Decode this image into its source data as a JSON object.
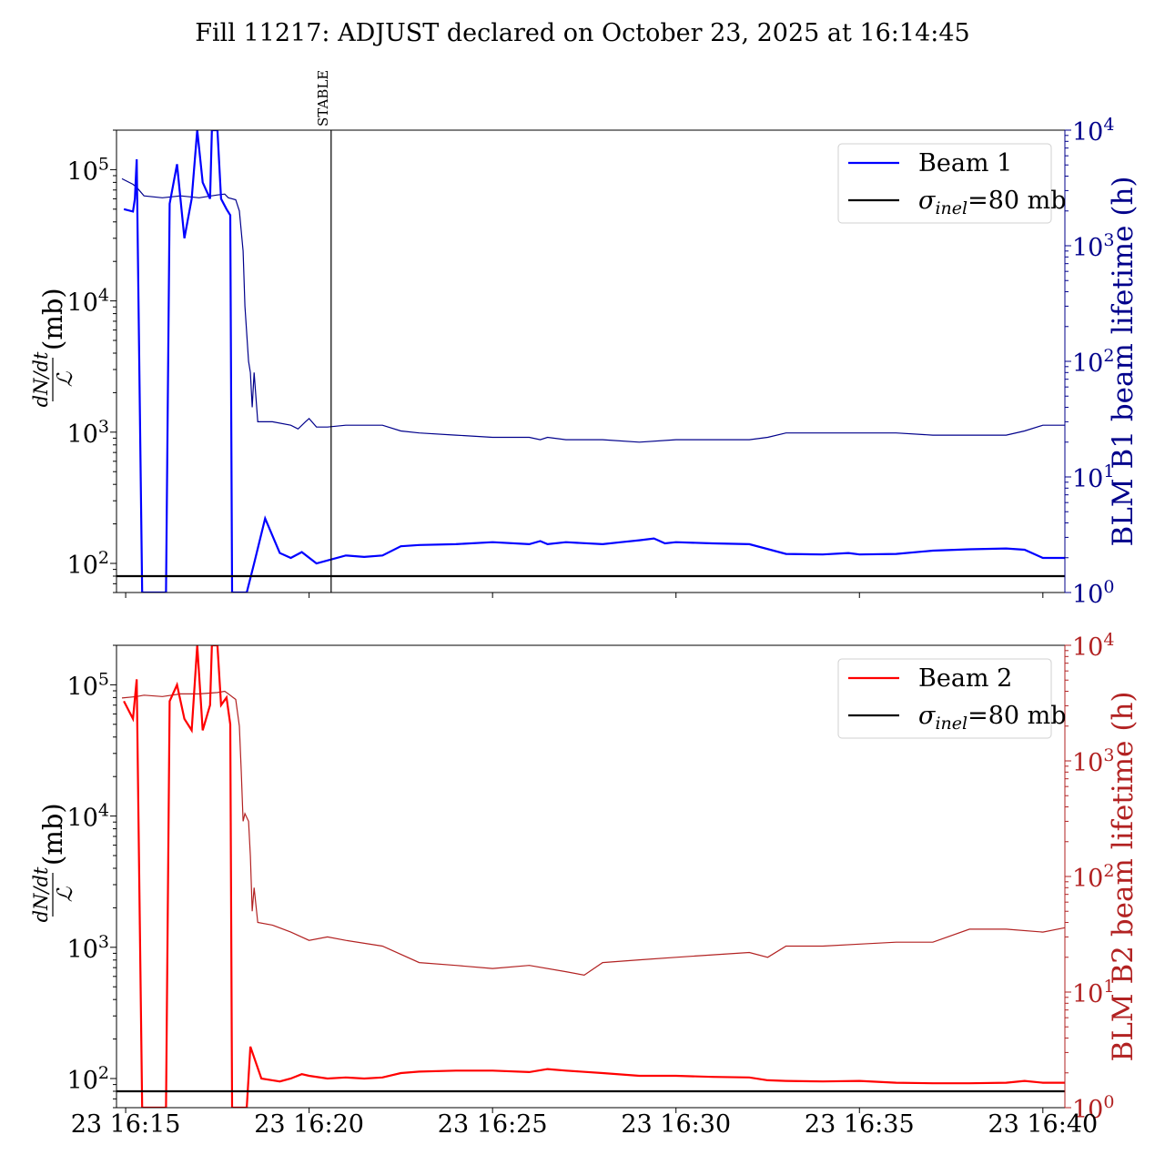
{
  "title": "Fill 11217: ADJUST declared on October 23, 2025 at 16:14:45",
  "x_tick_labels": [
    "23 16:15",
    "23 16:20",
    "23 16:25",
    "23 16:30",
    "23 16:35",
    "23 16:40"
  ],
  "stable_label": "STABLE",
  "colors": {
    "beam1": "#0000ff",
    "beam1_lifetime": "#00008b",
    "beam2": "#ff0000",
    "beam2_lifetime": "#b22222",
    "sigma": "#000000"
  },
  "chart_data": [
    {
      "type": "line",
      "panel": "top",
      "ylabel_frac_num": "dN/dt",
      "ylabel_frac_den": "ℒ",
      "ylabel_unit": "(mb)",
      "y_scale": "log",
      "ylim": [
        60,
        200000
      ],
      "y_tick_labels": [
        {
          "base": "10",
          "exp": "2"
        },
        {
          "base": "10",
          "exp": "3"
        },
        {
          "base": "10",
          "exp": "4"
        },
        {
          "base": "10",
          "exp": "5"
        }
      ],
      "y2label": "BLM B1 beam lifetime (h)",
      "y2_scale": "log",
      "y2lim": [
        1,
        10000
      ],
      "y2_tick_labels": [
        {
          "base": "10",
          "exp": "0"
        },
        {
          "base": "10",
          "exp": "1"
        },
        {
          "base": "10",
          "exp": "2"
        },
        {
          "base": "10",
          "exp": "3"
        },
        {
          "base": "10",
          "exp": "4"
        }
      ],
      "xlim_minutes_after_1615": [
        -0.25,
        25.6
      ],
      "stable_minute": 5.6,
      "legend": [
        {
          "label": "Beam 1",
          "kind": "beam"
        },
        {
          "label_sym": "σ",
          "label_sub": "inel",
          "label_rest": "=80 mb",
          "kind": "sigma"
        }
      ],
      "legend_position": "upper right",
      "sigma_inel": 80,
      "cross_section_series": {
        "name": "Beam 1",
        "x": [
          -0.05,
          0.2,
          0.25,
          0.3,
          0.45,
          0.55,
          0.6,
          0.9,
          1.1,
          1.2,
          1.4,
          1.6,
          1.8,
          1.95,
          2.1,
          2.3,
          2.35,
          2.5,
          2.6,
          2.75,
          2.85,
          2.9,
          3.1,
          3.3,
          3.5,
          3.8,
          4.2,
          4.5,
          4.8,
          5.2,
          6.0,
          6.5,
          7.0,
          7.5,
          8.0,
          9.0,
          10.0,
          11.0,
          11.3,
          11.5,
          12.0,
          13.0,
          13.5,
          14.0,
          14.4,
          14.7,
          15.0,
          16.0,
          17.0,
          18.0,
          19.0,
          19.7,
          20.0,
          21.0,
          22.0,
          23.0,
          24.0,
          24.5,
          25.0,
          25.6
        ],
        "y": [
          50000,
          48000,
          60000,
          120000,
          60,
          60,
          60,
          60,
          60,
          55000,
          110000,
          30000,
          60000,
          200000,
          80000,
          60000,
          200000,
          200000,
          60000,
          50000,
          45000,
          60,
          60,
          60,
          100,
          220,
          120,
          110,
          122,
          100,
          115,
          112,
          115,
          135,
          138,
          140,
          145,
          140,
          148,
          140,
          145,
          140,
          145,
          150,
          155,
          142,
          145,
          142,
          140,
          118,
          117,
          120,
          117,
          118,
          125,
          128,
          130,
          127,
          110,
          110
        ]
      },
      "lifetime_series": {
        "name": "BLM B1 beam lifetime (h)",
        "x": [
          -0.1,
          0.2,
          0.3,
          0.5,
          1.0,
          1.5,
          2.0,
          2.5,
          2.7,
          2.8,
          3.0,
          3.1,
          3.2,
          3.25,
          3.35,
          3.4,
          3.45,
          3.5,
          3.6,
          4.0,
          4.5,
          4.7,
          4.9,
          5.0,
          5.2,
          5.5,
          6.0,
          7.0,
          7.5,
          8.0,
          9.0,
          10.0,
          11.0,
          11.3,
          11.5,
          12.0,
          13.0,
          14.0,
          15.0,
          16.0,
          17.0,
          17.5,
          18.0,
          19.0,
          20.0,
          21.0,
          22.0,
          23.0,
          24.0,
          24.5,
          25.0,
          25.6
        ],
        "y": [
          3800,
          3400,
          3200,
          2700,
          2600,
          2700,
          2600,
          2750,
          2800,
          2600,
          2500,
          2000,
          900,
          300,
          100,
          80,
          40,
          80,
          30,
          30,
          28,
          26,
          30,
          32,
          27,
          27,
          28,
          28,
          25,
          24,
          23,
          22,
          22,
          21,
          22,
          21,
          21,
          20,
          21,
          21,
          21,
          22,
          24,
          24,
          24,
          24,
          23,
          23,
          23,
          25,
          28,
          28
        ]
      }
    },
    {
      "type": "line",
      "panel": "bottom",
      "ylabel_frac_num": "dN/dt",
      "ylabel_frac_den": "ℒ",
      "ylabel_unit": "(mb)",
      "y_scale": "log",
      "ylim": [
        60,
        200000
      ],
      "y_tick_labels": [
        {
          "base": "10",
          "exp": "2"
        },
        {
          "base": "10",
          "exp": "3"
        },
        {
          "base": "10",
          "exp": "4"
        },
        {
          "base": "10",
          "exp": "5"
        }
      ],
      "y2label": "BLM B2 beam lifetime (h)",
      "y2_scale": "log",
      "y2lim": [
        1,
        10000
      ],
      "y2_tick_labels": [
        {
          "base": "10",
          "exp": "0"
        },
        {
          "base": "10",
          "exp": "1"
        },
        {
          "base": "10",
          "exp": "2"
        },
        {
          "base": "10",
          "exp": "3"
        },
        {
          "base": "10",
          "exp": "4"
        }
      ],
      "xlim_minutes_after_1615": [
        -0.25,
        25.6
      ],
      "legend": [
        {
          "label": "Beam 2",
          "kind": "beam"
        },
        {
          "label_sym": "σ",
          "label_sub": "inel",
          "label_rest": "=80 mb",
          "kind": "sigma"
        }
      ],
      "legend_position": "upper right",
      "sigma_inel": 80,
      "cross_section_series": {
        "name": "Beam 2",
        "x": [
          -0.05,
          0.2,
          0.3,
          0.45,
          0.55,
          0.6,
          0.9,
          1.1,
          1.2,
          1.4,
          1.6,
          1.8,
          1.95,
          2.1,
          2.3,
          2.35,
          2.5,
          2.6,
          2.75,
          2.85,
          2.9,
          3.1,
          3.3,
          3.4,
          3.7,
          4.0,
          4.2,
          4.5,
          4.8,
          5.0,
          5.5,
          6.0,
          6.5,
          7.0,
          7.5,
          8.0,
          9.0,
          10.0,
          11.0,
          11.5,
          12.0,
          13.0,
          14.0,
          15.0,
          16.0,
          17.0,
          17.5,
          18.0,
          19.0,
          20.0,
          21.0,
          22.0,
          23.0,
          24.0,
          24.5,
          25.0,
          25.6
        ],
        "y": [
          75000,
          55000,
          110000,
          60,
          60,
          60,
          60,
          60,
          75000,
          100000,
          55000,
          45000,
          200000,
          45000,
          70000,
          200000,
          200000,
          70000,
          80000,
          50000,
          60,
          60,
          60,
          175,
          100,
          97,
          95,
          100,
          108,
          105,
          100,
          102,
          100,
          102,
          110,
          113,
          115,
          115,
          112,
          118,
          115,
          110,
          105,
          105,
          103,
          102,
          97,
          96,
          95,
          96,
          93,
          92,
          92,
          93,
          96,
          93,
          93
        ]
      },
      "lifetime_series": {
        "name": "BLM B2 beam lifetime (h)",
        "x": [
          -0.1,
          0.3,
          0.5,
          1.0,
          1.5,
          2.0,
          2.5,
          2.7,
          2.8,
          3.0,
          3.1,
          3.15,
          3.2,
          3.25,
          3.35,
          3.4,
          3.45,
          3.5,
          3.6,
          4.0,
          4.5,
          5.0,
          5.5,
          6.0,
          7.0,
          8.0,
          9.0,
          10.0,
          11.0,
          12.0,
          12.5,
          13.0,
          14.0,
          15.0,
          16.0,
          17.0,
          17.5,
          18.0,
          19.0,
          20.0,
          21.0,
          22.0,
          23.0,
          24.0,
          25.0,
          25.6
        ],
        "y": [
          3500,
          3600,
          3700,
          3600,
          3800,
          3800,
          3900,
          4000,
          3800,
          3400,
          2000,
          800,
          300,
          350,
          300,
          150,
          50,
          80,
          40,
          38,
          33,
          28,
          30,
          28,
          25,
          18,
          17,
          16,
          17,
          15,
          14,
          18,
          19,
          20,
          21,
          22,
          20,
          25,
          25,
          26,
          27,
          27,
          35,
          35,
          33,
          36
        ]
      }
    }
  ]
}
